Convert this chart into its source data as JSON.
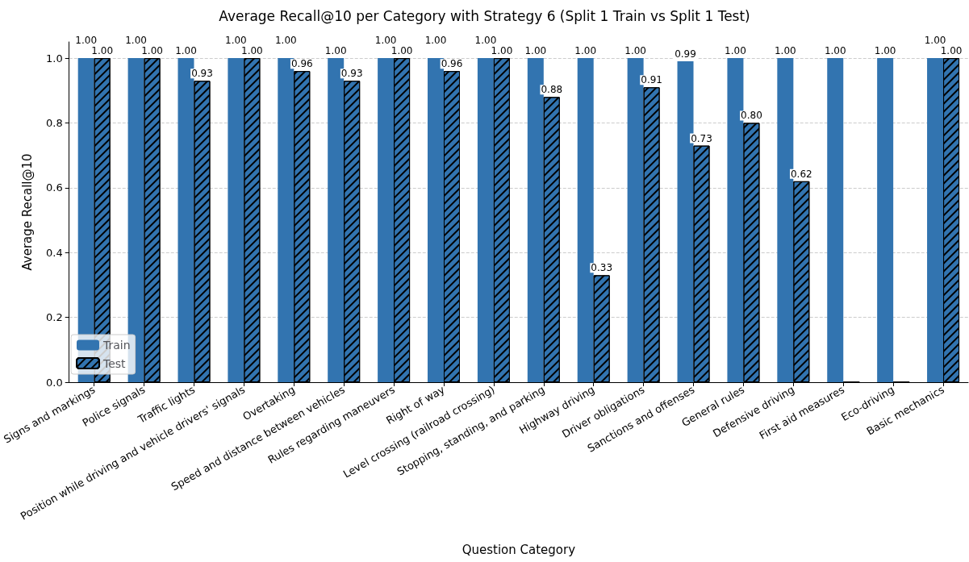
{
  "chart_data": {
    "type": "bar",
    "title": "Average Recall@10 per Category with Strategy 6 (Split 1 Train vs Split 1 Test)",
    "xlabel": "Question Category",
    "ylabel": "Average Recall@10",
    "categories": [
      "Signs and markings",
      "Police signals",
      "Traffic lights",
      "Position while driving and vehicle drivers' signals",
      "Overtaking",
      "Speed and distance between vehicles",
      "Rules regarding maneuvers",
      "Right of way",
      "Level crossing (railroad crossing)",
      "Stopping, standing, and parking",
      "Highway driving",
      "Driver obligations",
      "Sanctions and offenses",
      "General rules",
      "Defensive driving",
      "First aid measures",
      "Eco-driving",
      "Basic mechanics"
    ],
    "series": [
      {
        "name": "Train",
        "color": "#3274b0",
        "values": [
          1.0,
          1.0,
          1.0,
          1.0,
          1.0,
          1.0,
          1.0,
          1.0,
          1.0,
          1.0,
          1.0,
          1.0,
          0.99,
          1.0,
          1.0,
          1.0,
          1.0,
          1.0
        ],
        "value_labels": [
          "1.00",
          "1.00",
          "1.00",
          "1.00",
          "1.00",
          "1.00",
          "1.00",
          "1.00",
          "1.00",
          "1.00",
          "1.00",
          "1.00",
          "0.99",
          "1.00",
          "1.00",
          "1.00",
          "1.00",
          "1.00"
        ]
      },
      {
        "name": "Test",
        "color": "#3274b0",
        "values": [
          1.0,
          1.0,
          0.93,
          1.0,
          0.96,
          0.93,
          1.0,
          0.96,
          1.0,
          0.88,
          0.33,
          0.91,
          0.73,
          0.8,
          0.62,
          0.0,
          0.0,
          1.0
        ],
        "value_labels": [
          "1.00",
          "1.00",
          "0.93",
          "1.00",
          "0.96",
          "0.93",
          "1.00",
          "0.96",
          "1.00",
          "0.88",
          "0.33",
          "0.91",
          "0.73",
          "0.80",
          "0.62",
          null,
          null,
          "1.00"
        ]
      }
    ],
    "ylim": [
      0,
      1.05
    ],
    "yticks": [
      {
        "value": 0,
        "label": "0.0"
      },
      0.2,
      0.4,
      0.6,
      0.8,
      {
        "value": 1,
        "label": "1.0"
      }
    ],
    "grid": "y",
    "legend": "bottom left"
  }
}
